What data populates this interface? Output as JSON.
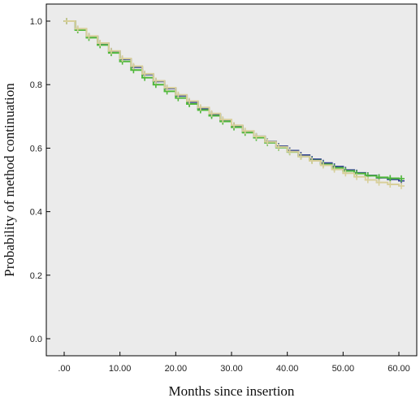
{
  "chart_data": {
    "type": "line",
    "title": "",
    "xlabel": "Months since insertion",
    "ylabel": "Probability of method continuation",
    "xlim": [
      0,
      60
    ],
    "ylim": [
      0,
      1.0
    ],
    "xticks": [
      0,
      10,
      20,
      30,
      40,
      50,
      60
    ],
    "xtick_labels": [
      ".00",
      "10.00",
      "20.00",
      "30.00",
      "40.00",
      "50.00",
      "60.00"
    ],
    "yticks": [
      0.0,
      0.2,
      0.4,
      0.6,
      0.8,
      1.0
    ],
    "ytick_labels": [
      "0.0",
      "0.2",
      "0.4",
      "0.6",
      "0.8",
      "1.0"
    ],
    "grid": false,
    "legend": "none",
    "plot_background": "#ebebeb",
    "series": [
      {
        "color": "#2e3f8f",
        "x": [
          0,
          2,
          4,
          6,
          8,
          10,
          12,
          14,
          16,
          18,
          20,
          22,
          24,
          26,
          28,
          30,
          32,
          34,
          36,
          38,
          40,
          42,
          44,
          46,
          48,
          50,
          52,
          54,
          56,
          58,
          60
        ],
        "y": [
          1.0,
          0.975,
          0.952,
          0.93,
          0.905,
          0.88,
          0.855,
          0.832,
          0.81,
          0.788,
          0.765,
          0.745,
          0.725,
          0.706,
          0.688,
          0.67,
          0.653,
          0.637,
          0.621,
          0.606,
          0.592,
          0.578,
          0.565,
          0.553,
          0.542,
          0.531,
          0.522,
          0.514,
          0.507,
          0.502,
          0.497
        ]
      },
      {
        "color": "#4fb83a",
        "x": [
          0,
          2,
          4,
          6,
          8,
          10,
          12,
          14,
          16,
          18,
          20,
          22,
          24,
          26,
          28,
          30,
          32,
          34,
          36,
          38,
          40,
          42,
          44,
          46,
          48,
          50,
          52,
          54,
          56,
          58,
          60
        ],
        "y": [
          1.0,
          0.972,
          0.948,
          0.925,
          0.9,
          0.873,
          0.846,
          0.822,
          0.8,
          0.779,
          0.758,
          0.739,
          0.72,
          0.702,
          0.684,
          0.666,
          0.649,
          0.633,
          0.617,
          0.602,
          0.588,
          0.574,
          0.561,
          0.549,
          0.538,
          0.528,
          0.52,
          0.513,
          0.508,
          0.505,
          0.504
        ]
      },
      {
        "color": "#d8cf9a",
        "x": [
          0,
          2,
          4,
          6,
          8,
          10,
          12,
          14,
          16,
          18,
          20,
          22,
          24,
          26,
          28,
          30,
          32,
          34,
          36,
          38,
          40,
          42,
          44,
          46,
          48,
          50,
          52,
          54,
          56,
          58,
          60
        ],
        "y": [
          1.0,
          0.976,
          0.953,
          0.931,
          0.906,
          0.882,
          0.858,
          0.834,
          0.812,
          0.79,
          0.768,
          0.748,
          0.728,
          0.709,
          0.69,
          0.672,
          0.654,
          0.637,
          0.62,
          0.604,
          0.589,
          0.574,
          0.56,
          0.546,
          0.533,
          0.521,
          0.51,
          0.5,
          0.492,
          0.486,
          0.481
        ]
      }
    ]
  }
}
